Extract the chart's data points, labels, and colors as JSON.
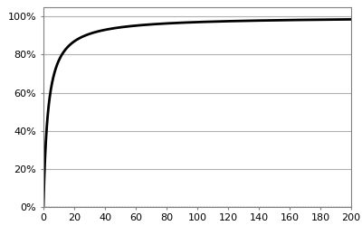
{
  "xlim": [
    0,
    200
  ],
  "ylim": [
    0.0,
    1.05
  ],
  "xticks": [
    0,
    20,
    40,
    60,
    80,
    100,
    120,
    140,
    160,
    180,
    200
  ],
  "yticks": [
    0.0,
    0.2,
    0.4,
    0.6,
    0.8,
    1.0
  ],
  "line_color": "#000000",
  "line_width": 2.0,
  "grid_color": "#b0b0b0",
  "bg_color": "#ffffff",
  "k": 3.0,
  "scatter_color": "#808080",
  "figsize": [
    4.0,
    2.6
  ],
  "dpi": 100,
  "spine_color": "#808080",
  "tick_labelsize": 8,
  "bottom_line_y": 0.005
}
